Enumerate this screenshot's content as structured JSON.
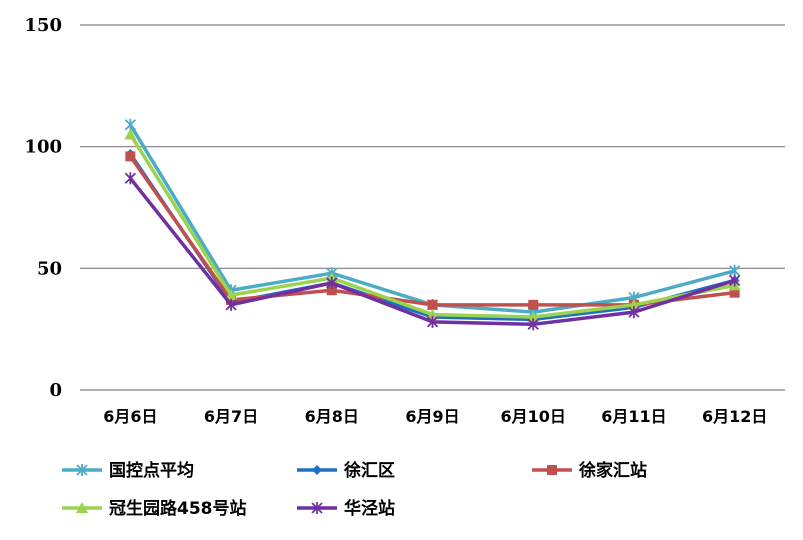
{
  "chart_data": {
    "type": "line",
    "title": "",
    "xlabel": "",
    "ylabel": "",
    "categories": [
      "6月6日",
      "6月7日",
      "6月8日",
      "6月9日",
      "6月10日",
      "6月11日",
      "6月12日"
    ],
    "ylim": [
      0,
      150
    ],
    "yticks": [
      0,
      50,
      100,
      150
    ],
    "grid": true,
    "legend_position": "bottom",
    "series": [
      {
        "name": "国控点平均",
        "color": "#4BACC6",
        "marker": "asterisk",
        "values": [
          109,
          41,
          48,
          35,
          32,
          38,
          49
        ]
      },
      {
        "name": "徐汇区",
        "color": "#1F6FC5",
        "marker": "diamond",
        "values": [
          97,
          36,
          44,
          30,
          29,
          34,
          45
        ]
      },
      {
        "name": "徐家汇站",
        "color": "#C0504D",
        "marker": "square",
        "values": [
          96,
          37,
          41,
          35,
          35,
          35,
          40
        ]
      },
      {
        "name": "冠生园路458号站",
        "color": "#9BD34E",
        "marker": "triangle",
        "values": [
          105,
          39,
          46,
          31,
          30,
          35,
          43
        ]
      },
      {
        "name": "华泾站",
        "color": "#7030A0",
        "marker": "asterisk",
        "values": [
          87,
          35,
          44,
          28,
          27,
          32,
          45
        ]
      }
    ]
  }
}
